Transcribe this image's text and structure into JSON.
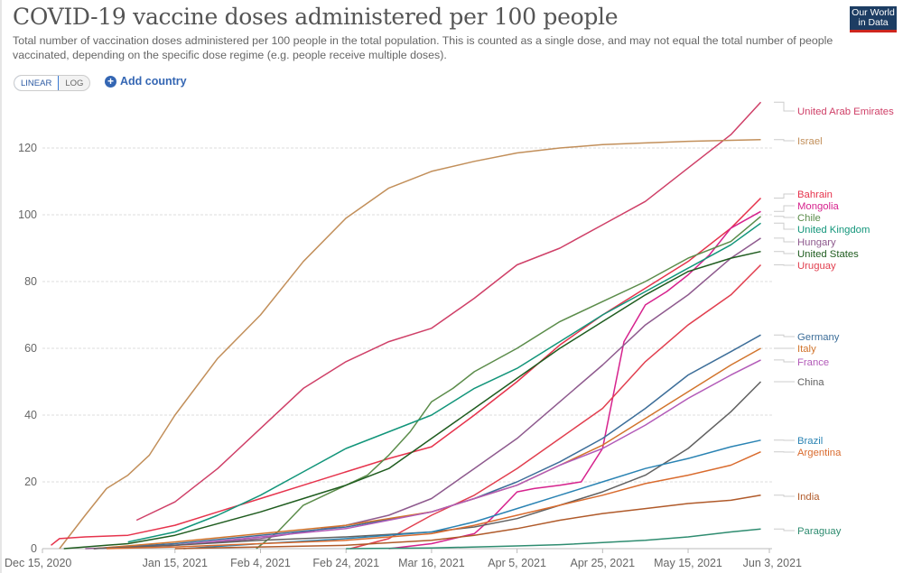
{
  "header": {
    "title": "COVID-19 vaccine doses administered per 100 people",
    "subtitle": "Total number of vaccination doses administered per 100 people in the total population. This is counted as a single dose, and may not equal the total number of people vaccinated, depending on the specific dose regime (e.g. people receive multiple doses).",
    "logo_line1": "Our World",
    "logo_line2": "in Data"
  },
  "controls": {
    "scale_linear": "LINEAR",
    "scale_log": "LOG",
    "active_scale": "linear",
    "add_country_label": "Add country",
    "add_country_icon": "plus-circle-icon"
  },
  "chart_data": {
    "type": "line",
    "title": "COVID-19 vaccine doses administered per 100 people",
    "xlabel": "",
    "ylabel": "",
    "ylim": [
      0,
      135
    ],
    "grid": true,
    "legend": "right (end-of-line labels)",
    "y_ticks": [
      "0",
      "20",
      "40",
      "60",
      "80",
      "100",
      "120"
    ],
    "y_tick_values": [
      0,
      20,
      40,
      60,
      80,
      100,
      120
    ],
    "x_ticks": [
      "Dec 15, 2020",
      "Jan 15, 2021",
      "Feb 4, 2021",
      "Feb 24, 2021",
      "Mar 16, 2021",
      "Apr 5, 2021",
      "Apr 25, 2021",
      "May 15, 2021",
      "Jun 3, 2021"
    ],
    "x_tick_days": [
      0,
      31,
      51,
      71,
      91,
      111,
      131,
      151,
      170
    ],
    "x_unit": "days since Dec 15, 2020",
    "xlim": [
      0,
      170
    ],
    "series": [
      {
        "name": "United Arab Emirates",
        "color": "#cf4068",
        "x": [
          22,
          31,
          41,
          51,
          61,
          71,
          81,
          91,
          101,
          111,
          121,
          131,
          141,
          151,
          161,
          168
        ],
        "values": [
          8.5,
          14,
          24,
          36,
          48,
          56,
          62,
          66,
          75,
          85,
          90,
          97,
          104,
          114,
          124,
          133.7
        ]
      },
      {
        "name": "Israel",
        "color": "#c28f5a",
        "x": [
          4,
          10,
          15,
          20,
          25,
          31,
          41,
          51,
          61,
          71,
          81,
          91,
          101,
          111,
          121,
          131,
          141,
          151,
          161,
          168
        ],
        "values": [
          0,
          10,
          18,
          22,
          28,
          40,
          57,
          70,
          86,
          99,
          108,
          113,
          116,
          118.5,
          120,
          121,
          121.5,
          122,
          122.3,
          122.5
        ]
      },
      {
        "name": "Bahrain",
        "color": "#e6334c",
        "x": [
          2,
          4,
          10,
          20,
          31,
          41,
          51,
          61,
          71,
          81,
          91,
          101,
          111,
          121,
          131,
          141,
          151,
          161,
          168
        ],
        "values": [
          1,
          3,
          3.5,
          4,
          7,
          11,
          15,
          19,
          23,
          27,
          30.5,
          40,
          50,
          61,
          70,
          78,
          86,
          96,
          105
        ]
      },
      {
        "name": "Mongolia",
        "color": "#d6228d",
        "x": [
          81,
          91,
          101,
          105,
          111,
          115,
          121,
          126,
          131,
          136,
          141,
          146,
          151,
          156,
          161,
          168
        ],
        "values": [
          0,
          1.5,
          4.5,
          9,
          17,
          18,
          19,
          20,
          30,
          62,
          73,
          77,
          82,
          88,
          96,
          101
        ]
      },
      {
        "name": "Chile",
        "color": "#5b8c4a",
        "x": [
          50,
          55,
          61,
          66,
          71,
          76,
          81,
          86,
          91,
          96,
          101,
          111,
          121,
          131,
          141,
          151,
          161,
          168
        ],
        "values": [
          0,
          5,
          13,
          16,
          19,
          22,
          28,
          35,
          44,
          48,
          53,
          60,
          68,
          74,
          80,
          87,
          92,
          99.5
        ]
      },
      {
        "name": "United Kingdom",
        "color": "#12957a",
        "x": [
          20,
          31,
          41,
          51,
          61,
          71,
          81,
          91,
          101,
          111,
          121,
          131,
          141,
          151,
          161,
          168
        ],
        "values": [
          2,
          5,
          10,
          16,
          23,
          30,
          35,
          40,
          48,
          54,
          62,
          70,
          77,
          84,
          91,
          97.5
        ]
      },
      {
        "name": "Hungary",
        "color": "#8e5a8e",
        "x": [
          10,
          31,
          51,
          61,
          71,
          81,
          91,
          101,
          111,
          121,
          131,
          141,
          151,
          161,
          168
        ],
        "values": [
          0,
          1,
          3,
          5,
          7,
          10,
          15,
          24,
          33,
          44,
          55,
          67,
          76,
          87,
          93
        ]
      },
      {
        "name": "United States",
        "color": "#1f5c1f",
        "x": [
          5,
          15,
          20,
          31,
          41,
          51,
          61,
          71,
          81,
          91,
          101,
          111,
          121,
          131,
          141,
          151,
          161,
          168
        ],
        "values": [
          0,
          1,
          1.5,
          4,
          7.5,
          11,
          15,
          19,
          24,
          33,
          42,
          51,
          60,
          68,
          76,
          83,
          87,
          89
        ]
      },
      {
        "name": "Uruguay",
        "color": "#e13f4f",
        "x": [
          72,
          81,
          91,
          101,
          111,
          121,
          131,
          141,
          151,
          161,
          168
        ],
        "values": [
          0,
          3,
          10,
          16,
          24,
          33,
          42,
          56,
          67,
          76,
          85
        ]
      },
      {
        "name": "Germany",
        "color": "#3d6e99",
        "x": [
          12,
          31,
          51,
          71,
          91,
          101,
          111,
          121,
          131,
          141,
          151,
          161,
          168
        ],
        "values": [
          0,
          1.5,
          4,
          6.5,
          11,
          15,
          20,
          26,
          33,
          42,
          52,
          59,
          64
        ]
      },
      {
        "name": "Italy",
        "color": "#d1742c",
        "x": [
          12,
          31,
          51,
          71,
          91,
          101,
          111,
          121,
          131,
          141,
          151,
          161,
          168
        ],
        "values": [
          0,
          2,
          4.5,
          7,
          11,
          15,
          19,
          25,
          31,
          39,
          47,
          55,
          60
        ]
      },
      {
        "name": "France",
        "color": "#b25ab8",
        "x": [
          12,
          31,
          51,
          71,
          91,
          101,
          111,
          121,
          131,
          141,
          151,
          161,
          168
        ],
        "values": [
          0,
          1,
          3.5,
          6,
          11,
          15,
          19,
          25,
          30,
          37,
          45,
          52,
          56.5
        ]
      },
      {
        "name": "China",
        "color": "#616161",
        "x": [
          12,
          31,
          51,
          71,
          91,
          101,
          111,
          121,
          131,
          141,
          151,
          161,
          168
        ],
        "values": [
          0,
          1,
          2.5,
          3.5,
          5,
          6.5,
          9,
          13,
          17,
          22,
          30,
          41,
          50
        ]
      },
      {
        "name": "Brazil",
        "color": "#2a83b3",
        "x": [
          33,
          51,
          71,
          91,
          101,
          111,
          121,
          131,
          141,
          151,
          161,
          168
        ],
        "values": [
          0,
          1.5,
          3,
          5,
          8,
          12,
          16,
          20,
          24,
          27,
          30.5,
          32.5
        ]
      },
      {
        "name": "Argentina",
        "color": "#d96b2e",
        "x": [
          15,
          31,
          51,
          71,
          91,
          101,
          111,
          121,
          131,
          141,
          151,
          161,
          168
        ],
        "values": [
          0,
          0.5,
          1.5,
          2.5,
          4.5,
          7,
          10,
          13,
          16,
          19.5,
          22,
          25,
          29
        ]
      },
      {
        "name": "India",
        "color": "#b05a2a",
        "x": [
          31,
          51,
          71,
          91,
          101,
          111,
          121,
          131,
          141,
          151,
          161,
          168
        ],
        "values": [
          0,
          0.5,
          1,
          2.5,
          4,
          6,
          8.5,
          10.5,
          12,
          13.5,
          14.5,
          16
        ]
      },
      {
        "name": "Paraguay",
        "color": "#2e8c70",
        "x": [
          71,
          91,
          111,
          121,
          131,
          141,
          151,
          161,
          168
        ],
        "values": [
          0,
          0.2,
          0.8,
          1.2,
          1.8,
          2.5,
          3.5,
          5,
          5.9
        ]
      }
    ],
    "legend_entries": [
      {
        "name": "United Arab Emirates",
        "color": "#cf4068"
      },
      {
        "name": "Israel",
        "color": "#c28f5a"
      },
      {
        "name": "Bahrain",
        "color": "#e6334c"
      },
      {
        "name": "Mongolia",
        "color": "#d6228d"
      },
      {
        "name": "Chile",
        "color": "#5b8c4a"
      },
      {
        "name": "United Kingdom",
        "color": "#12957a"
      },
      {
        "name": "Hungary",
        "color": "#8e5a8e"
      },
      {
        "name": "United States",
        "color": "#1f5c1f"
      },
      {
        "name": "Uruguay",
        "color": "#e13f4f"
      },
      {
        "name": "Germany",
        "color": "#3d6e99"
      },
      {
        "name": "Italy",
        "color": "#d1742c"
      },
      {
        "name": "France",
        "color": "#b25ab8"
      },
      {
        "name": "China",
        "color": "#616161"
      },
      {
        "name": "Brazil",
        "color": "#2a83b3"
      },
      {
        "name": "Argentina",
        "color": "#d96b2e"
      },
      {
        "name": "India",
        "color": "#b05a2a"
      },
      {
        "name": "Paraguay",
        "color": "#2e8c70"
      }
    ]
  }
}
